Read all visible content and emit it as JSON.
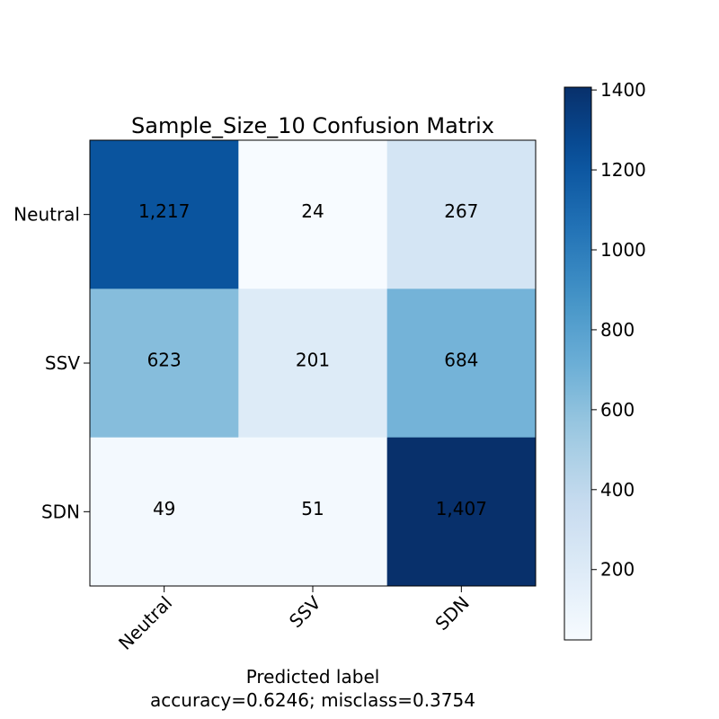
{
  "chart_data": {
    "type": "heatmap",
    "title": "Sample_Size_10 Confusion Matrix",
    "xlabel": "Predicted label",
    "xlabel_line2": "accuracy=0.6246; misclass=0.3754",
    "x_categories": [
      "Neutral",
      "SSV",
      "SDN"
    ],
    "y_categories": [
      "Neutral",
      "SSV",
      "SDN"
    ],
    "values": [
      [
        1217,
        24,
        267
      ],
      [
        623,
        201,
        684
      ],
      [
        49,
        51,
        1407
      ]
    ],
    "value_labels": [
      [
        "1,217",
        "24",
        "267"
      ],
      [
        "623",
        "201",
        "684"
      ],
      [
        "49",
        "51",
        "1,407"
      ]
    ],
    "colormap": "Blues",
    "colorbar": {
      "range": [
        24,
        1407
      ],
      "ticks": [
        200,
        400,
        600,
        800,
        1000,
        1200,
        1400
      ],
      "tick_labels": [
        "200",
        "400",
        "600",
        "800",
        "1000",
        "1200",
        "1400"
      ]
    },
    "colors": {
      "low": "#f7fbff",
      "high": "#08306b"
    }
  }
}
